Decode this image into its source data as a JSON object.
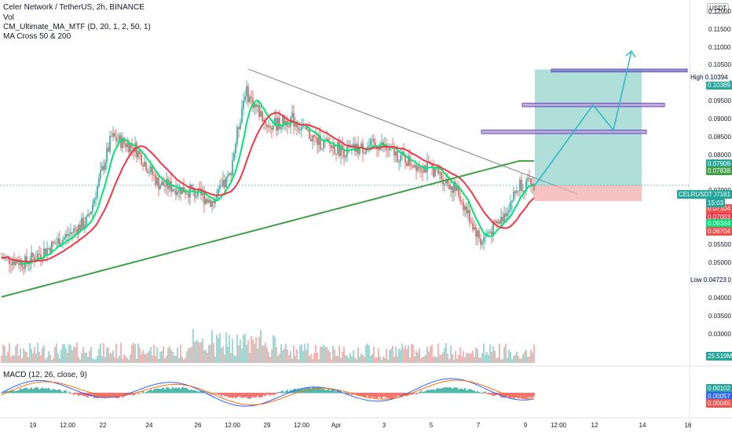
{
  "legend": {
    "main": "Celer Network / TetherUS, 2h, BINANCE",
    "volume": "Vol",
    "cm": "CM_Ultimate_MA_MTF (D, 20, 1, 2, 50, 1)",
    "ma": "MA Cross 50 & 200",
    "macd": "MACD (12, 26, close, 9)"
  },
  "currency_button": "USDT",
  "colors": {
    "up": "#26a69a",
    "down": "#ef5350",
    "ma_fast": "#00e676",
    "ma_red": "#f23645",
    "ma_green": "#43a047",
    "trend": "#787b86",
    "target_zone": "#4fb9ac",
    "stop_zone": "#f7a8a8",
    "box_fill": "#b39ddb",
    "box_fill_blue": "#7986cb",
    "arrow": "#29b6c6",
    "macd_line": "#2962ff",
    "signal_line": "#ff6d00"
  },
  "chart_data": {
    "type": "candlestick",
    "symbol": "CELRUSDT",
    "timeframe": "2h",
    "exchange": "BINANCE",
    "ylim": [
      0.023,
      0.125
    ],
    "price_ticks": [
      "0.12000",
      "0.11500",
      "0.11000",
      "0.10500",
      "0.10000",
      "0.09500",
      "0.09000",
      "0.08500",
      "0.08000",
      "0.07500",
      "0.07000",
      "0.06500",
      "0.06000",
      "0.05500",
      "0.05000",
      "0.04500",
      "0.04000",
      "0.03500",
      "0.03000"
    ],
    "time_ticks": [
      "19",
      "12:00",
      "22",
      "24",
      "26",
      "12:00",
      "29",
      "12:00",
      "Apr",
      "3",
      "5",
      "7",
      "9",
      "12:00",
      "12",
      "14",
      "16"
    ],
    "high_label": "High",
    "high_value": "0.10394",
    "low_label": "Low",
    "low_value": "0.04723",
    "price_labels": [
      {
        "value": "0.10389",
        "color": "#26a69a"
      },
      {
        "value": "0.07906",
        "color": "#26a69a"
      },
      {
        "value": "0.07838",
        "color": "#43a047"
      },
      {
        "value": "0.07161",
        "color": "#26a69a",
        "name": "CELRUSDT",
        "time": "15:03"
      },
      {
        "value": "0.07104",
        "color": "#ef5350"
      },
      {
        "value": "0.07003",
        "color": "#f23645"
      },
      {
        "value": "0.06344",
        "color": "#00e676"
      },
      {
        "value": "0.06704",
        "color": "#ef5350"
      }
    ],
    "volume_label": "25.519M",
    "macd_labels": [
      {
        "value": "0.00102",
        "color": "#26a69a"
      },
      {
        "value": "0.00057",
        "color": "#2962ff"
      },
      {
        "value": "0.00045",
        "color": "#ef5350"
      }
    ],
    "trendline": {
      "from": [
        0.104,
        52
      ],
      "to": [
        0.069,
        0
      ]
    },
    "position": {
      "entry": 0.0716,
      "target": 0.1039,
      "stop": 0.0672
    },
    "zones": [
      {
        "low": 0.1032,
        "high": 0.104
      },
      {
        "low": 0.0935,
        "high": 0.0945
      },
      {
        "low": 0.086,
        "high": 0.087
      }
    ],
    "projection": [
      0.0716,
      0.094,
      0.087,
      0.109
    ]
  }
}
